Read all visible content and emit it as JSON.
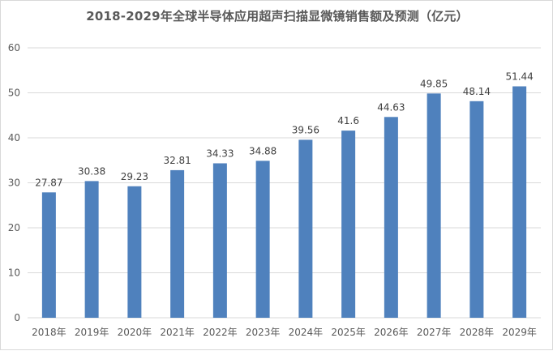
{
  "chart_data": {
    "type": "bar",
    "title": "2018-2029年全球半导体应用超声扫描显微镜销售额及预测（亿元）",
    "categories": [
      "2018年",
      "2019年",
      "2020年",
      "2021年",
      "2022年",
      "2023年",
      "2024年",
      "2025年",
      "2026年",
      "2027年",
      "2028年",
      "2029年"
    ],
    "values": [
      27.87,
      30.38,
      29.23,
      32.81,
      34.33,
      34.88,
      39.56,
      41.6,
      44.63,
      49.85,
      48.14,
      51.44
    ],
    "data_labels": [
      "27.87",
      "30.38",
      "29.23",
      "32.81",
      "34.33",
      "34.88",
      "39.56",
      "41.6",
      "44.63",
      "49.85",
      "48.14",
      "51.44"
    ],
    "ylim": [
      0,
      60
    ],
    "yticks": [
      0,
      10,
      20,
      30,
      40,
      50,
      60
    ],
    "grid": true,
    "bar_color": "#4f81bd",
    "grid_color": "#d9d9d9",
    "xlabel": "",
    "ylabel": ""
  }
}
